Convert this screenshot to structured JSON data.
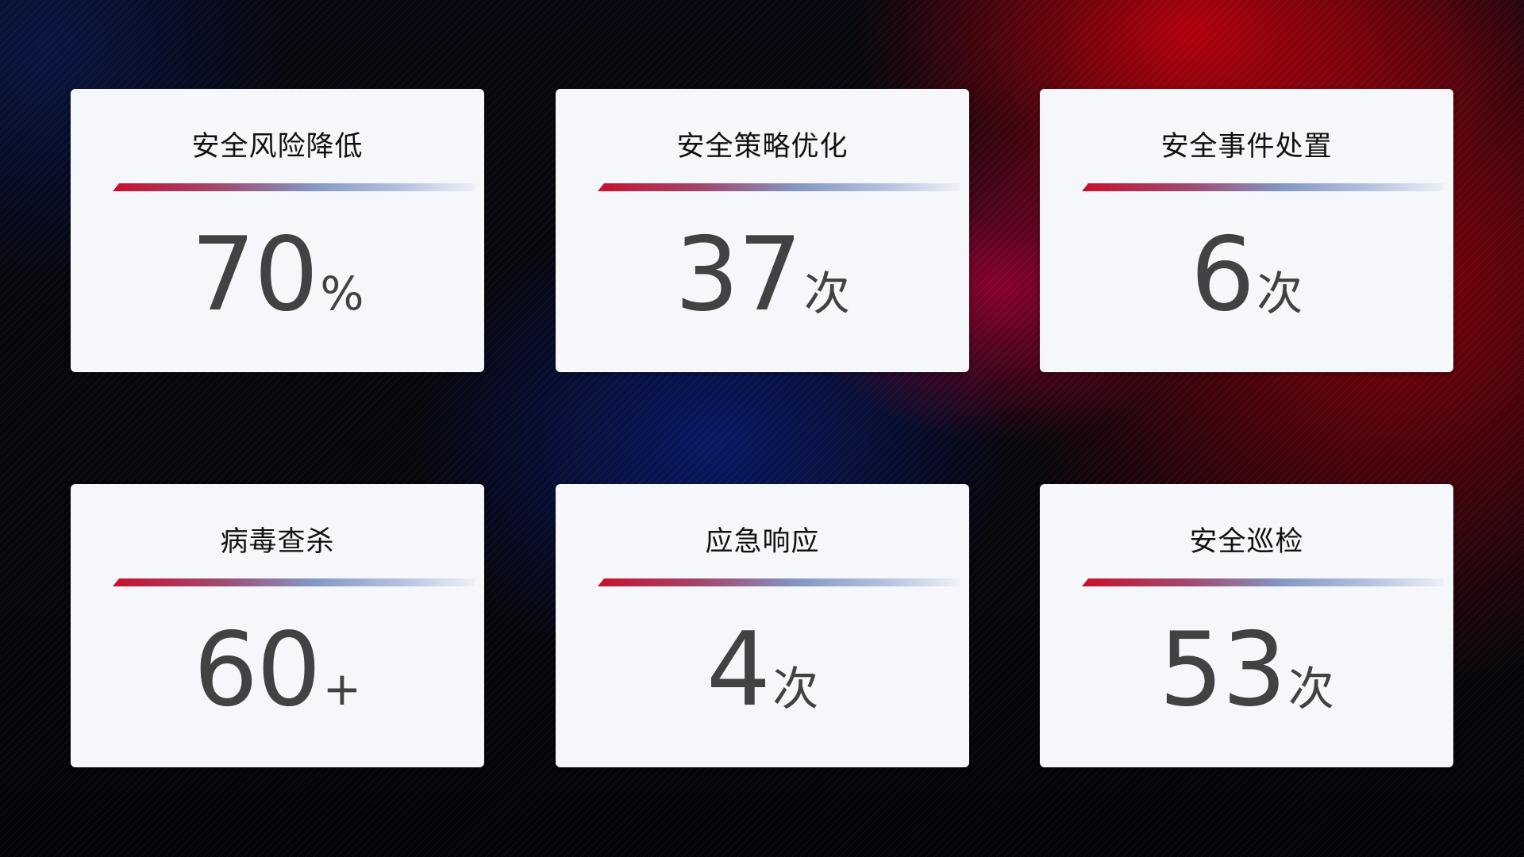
{
  "cards": [
    {
      "title": "安全风险降低",
      "value": "70",
      "unit": "%"
    },
    {
      "title": "安全策略优化",
      "value": "37",
      "unit": "次"
    },
    {
      "title": "安全事件处置",
      "value": "6",
      "unit": "次"
    },
    {
      "title": "病毒查杀",
      "value": "60",
      "unit": "+"
    },
    {
      "title": "应急响应",
      "value": "4",
      "unit": "次"
    },
    {
      "title": "安全巡检",
      "value": "53",
      "unit": "次"
    }
  ],
  "colors": {
    "accent_red": "#c8102e",
    "accent_blue": "#8496c4",
    "card_bg": "#f6f7fb",
    "value_text": "#424242"
  }
}
